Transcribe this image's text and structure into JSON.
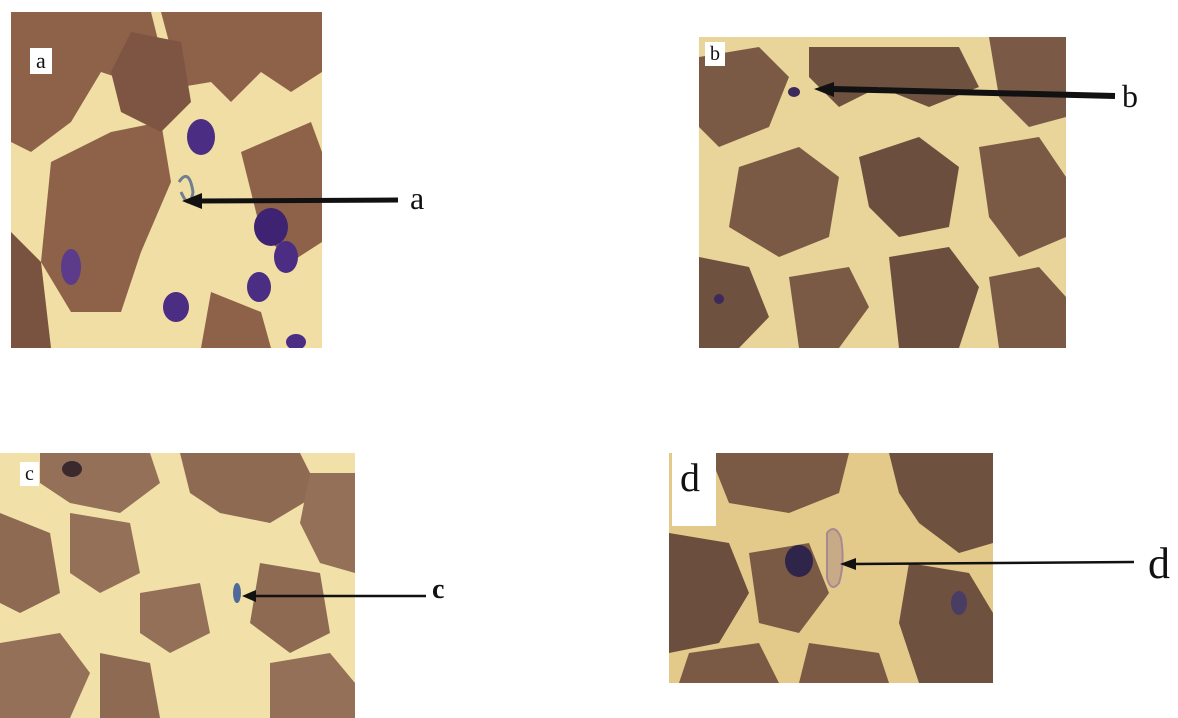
{
  "panels": {
    "a": {
      "corner_label": "a",
      "pointer_label": "a"
    },
    "b": {
      "corner_label": "b",
      "pointer_label": "b"
    },
    "c": {
      "corner_label": "c",
      "pointer_label": "c"
    },
    "d": {
      "corner_label": "d",
      "pointer_label": "d"
    }
  },
  "colors": {
    "background": "#f0dea4",
    "cell": "#8d6249",
    "cell_dark": "#6e4a3a",
    "nucleus": "#4b2d83",
    "arrow": "#111111"
  }
}
